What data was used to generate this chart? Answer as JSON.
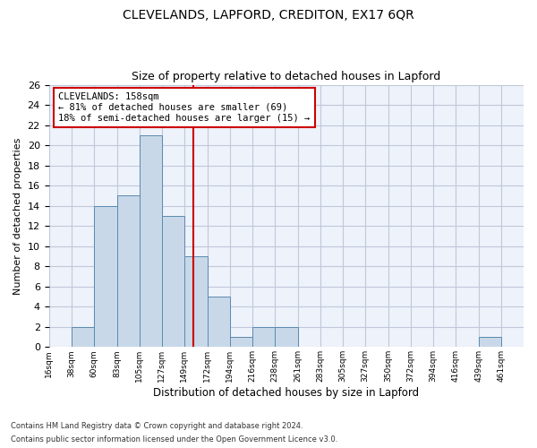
{
  "title": "CLEVELANDS, LAPFORD, CREDITON, EX17 6QR",
  "subtitle": "Size of property relative to detached houses in Lapford",
  "xlabel": "Distribution of detached houses by size in Lapford",
  "ylabel": "Number of detached properties",
  "bar_color": "#c8d8e8",
  "bar_edgecolor": "#5a8ab0",
  "vline_x": 158,
  "vline_color": "#cc0000",
  "annotation_title": "CLEVELANDS: 158sqm",
  "annotation_line1": "← 81% of detached houses are smaller (69)",
  "annotation_line2": "18% of semi-detached houses are larger (15) →",
  "annotation_box_color": "#cc0000",
  "categories": [
    "16sqm",
    "38sqm",
    "60sqm",
    "83sqm",
    "105sqm",
    "127sqm",
    "149sqm",
    "172sqm",
    "194sqm",
    "216sqm",
    "238sqm",
    "261sqm",
    "283sqm",
    "305sqm",
    "327sqm",
    "350sqm",
    "372sqm",
    "394sqm",
    "416sqm",
    "439sqm",
    "461sqm"
  ],
  "bin_edges": [
    16,
    38,
    60,
    83,
    105,
    127,
    149,
    172,
    194,
    216,
    238,
    261,
    283,
    305,
    327,
    350,
    372,
    394,
    416,
    439,
    461,
    483
  ],
  "values": [
    0,
    2,
    14,
    15,
    21,
    13,
    9,
    5,
    1,
    2,
    2,
    0,
    0,
    0,
    0,
    0,
    0,
    0,
    0,
    1,
    0
  ],
  "ylim": [
    0,
    26
  ],
  "yticks": [
    0,
    2,
    4,
    6,
    8,
    10,
    12,
    14,
    16,
    18,
    20,
    22,
    24,
    26
  ],
  "footnote1": "Contains HM Land Registry data © Crown copyright and database right 2024.",
  "footnote2": "Contains public sector information licensed under the Open Government Licence v3.0.",
  "bg_color": "#eef2fa",
  "grid_color": "#c0c8da"
}
